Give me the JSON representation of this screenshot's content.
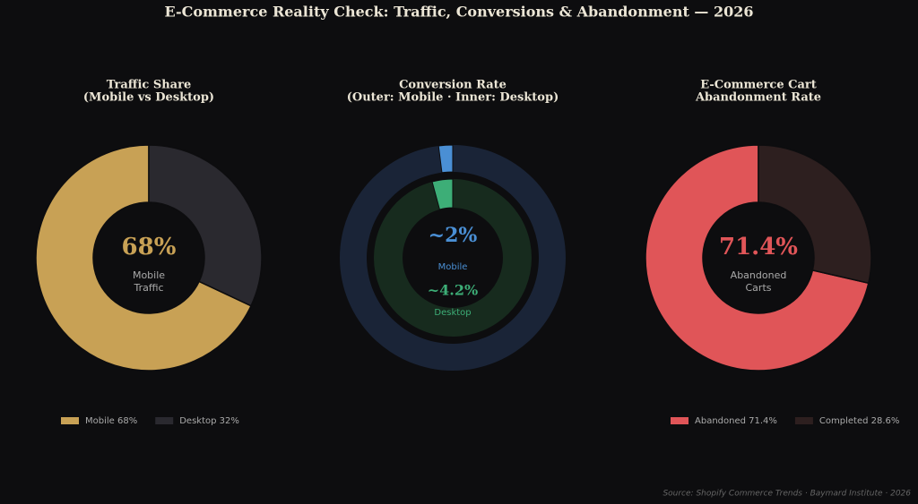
{
  "title": "E-Commerce Reality Check: Traffic, Conversions & Abandonment  —  2026",
  "source": "Source: Shopify Commerce Trends · Baymard Institute · 2026",
  "chart_data": [
    {
      "type": "donut",
      "title": "Traffic Share",
      "subtitle": "(Mobile vs Desktop)",
      "categories": [
        "Mobile 68%",
        "Desktop 32%"
      ],
      "values": [
        68,
        32
      ],
      "colors": [
        "#c8a155",
        "#2a292f"
      ],
      "center_label": "68%",
      "center_caption": [
        "Mobile",
        "Traffic"
      ],
      "center_color": "#c8a155"
    },
    {
      "type": "nested-donut",
      "title": "Conversion Rate",
      "subtitle": "(Outer: Mobile · Inner: Desktop)",
      "series": [
        {
          "name": "Mobile",
          "value": 2,
          "value_label": "~2%",
          "color": "#4a8fd4",
          "track_color": "#1a2437"
        },
        {
          "name": "Desktop",
          "value": 4.2,
          "value_label": "~4.2%",
          "color": "#3dae77",
          "track_color": "#172b1e"
        }
      ]
    },
    {
      "type": "donut",
      "title": "E-Commerce Cart",
      "subtitle": "Abandonment Rate",
      "categories": [
        "Abandoned 71.4%",
        "Completed 28.6%"
      ],
      "values": [
        71.4,
        28.6
      ],
      "colors": [
        "#e05558",
        "#2d1f1f"
      ],
      "center_label": "71.4%",
      "center_caption": [
        "Abandoned",
        "Carts"
      ],
      "center_color": "#e05558"
    }
  ]
}
